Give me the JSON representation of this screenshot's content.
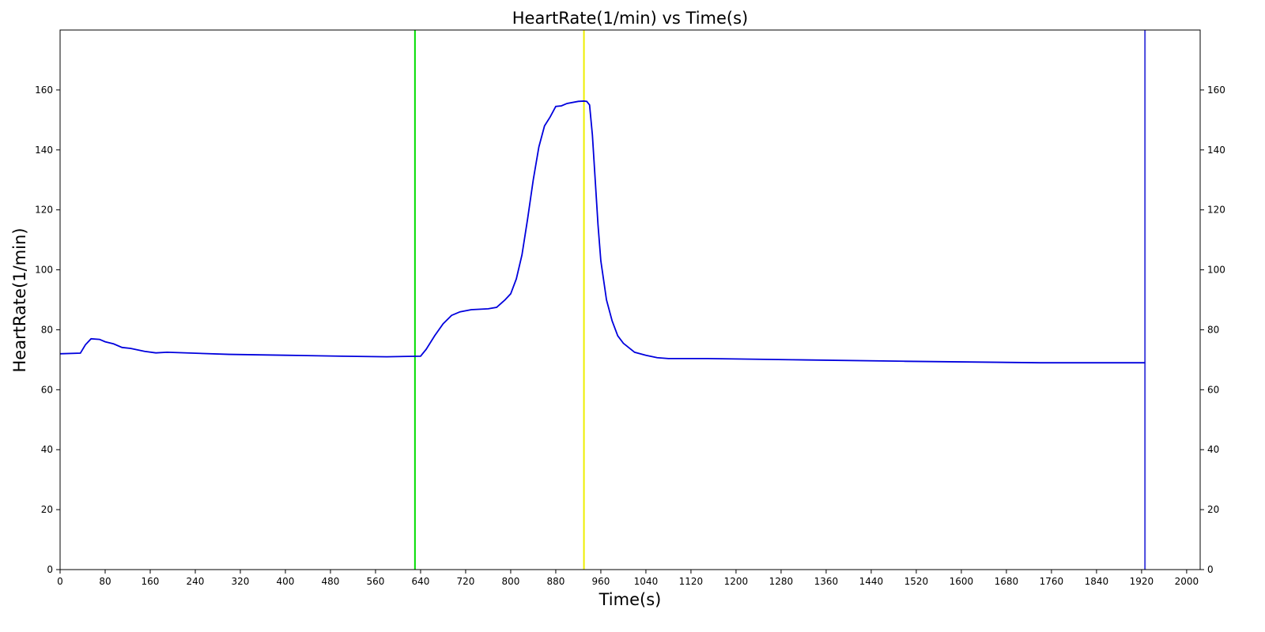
{
  "chart_data": {
    "type": "line",
    "title": "HeartRate(1/min) vs Time(s)",
    "xlabel": "Time(s)",
    "ylabel": "HeartRate(1/min)",
    "x": [
      0,
      36,
      45,
      55,
      70,
      80,
      95,
      110,
      125,
      150,
      170,
      190,
      300,
      400,
      500,
      580,
      640,
      650,
      665,
      680,
      695,
      710,
      730,
      760,
      775,
      790,
      800,
      810,
      820,
      830,
      840,
      850,
      860,
      870,
      880,
      890,
      900,
      920,
      930,
      935,
      940,
      945,
      950,
      955,
      960,
      970,
      980,
      990,
      1000,
      1020,
      1040,
      1060,
      1080,
      1150,
      1300,
      1500,
      1740,
      1926
    ],
    "values": [
      72,
      72.2,
      75,
      77,
      76.8,
      76,
      75.3,
      74.1,
      73.8,
      72.8,
      72.3,
      72.5,
      71.8,
      71.5,
      71.2,
      71,
      71.2,
      73.5,
      78,
      82,
      84.8,
      86,
      86.7,
      87,
      87.5,
      90,
      92,
      97,
      105,
      117,
      130,
      141,
      148,
      151,
      154.5,
      154.7,
      155.5,
      156.2,
      156.3,
      156.2,
      155,
      145,
      130,
      115,
      103,
      90,
      83,
      78,
      75.5,
      72.5,
      71.5,
      70.7,
      70.4,
      70.4,
      70,
      69.5,
      69,
      69
    ],
    "color": "#0000dd",
    "vlines": [
      {
        "x": 630,
        "color": "#00dd00"
      },
      {
        "x": 930,
        "color": "#eeee00"
      },
      {
        "x": 1926,
        "color": "#4444dd"
      }
    ],
    "xlim": [
      0,
      2024
    ],
    "xticks": [
      0,
      80,
      160,
      240,
      320,
      400,
      480,
      560,
      640,
      720,
      800,
      880,
      960,
      1040,
      1120,
      1200,
      1280,
      1360,
      1440,
      1520,
      1600,
      1680,
      1760,
      1840,
      1920,
      2000
    ],
    "ylim": [
      0,
      180
    ],
    "yticks": [
      0,
      20,
      40,
      60,
      80,
      100,
      120,
      140,
      160
    ],
    "y2lim": [
      0,
      180
    ],
    "y2ticks": [
      0,
      20,
      40,
      60,
      80,
      100,
      120,
      140,
      160
    ]
  }
}
